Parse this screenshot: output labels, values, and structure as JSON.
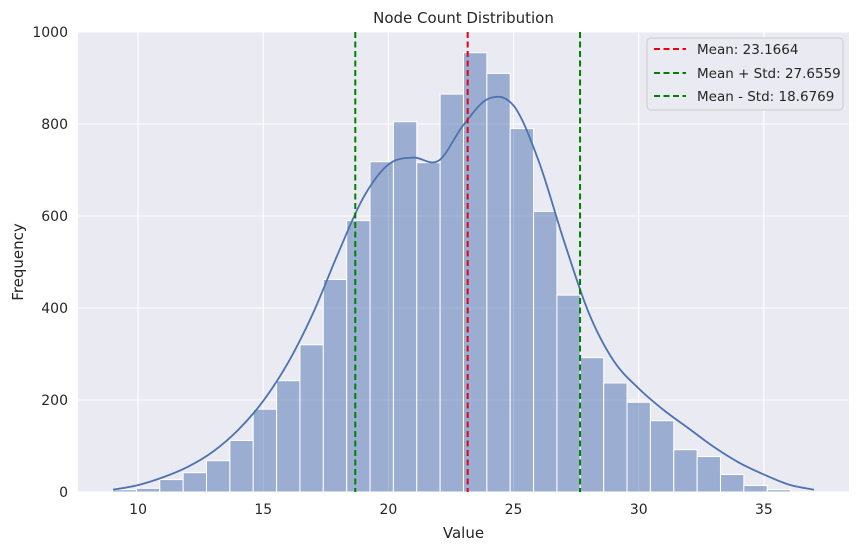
{
  "chart_data": {
    "type": "bar",
    "title": "Node Count Distribution",
    "xlabel": "Value",
    "ylabel": "Frequency",
    "xlim": [
      7.6,
      38.4
    ],
    "ylim": [
      0,
      1000
    ],
    "xticks": [
      10,
      15,
      20,
      25,
      30,
      35
    ],
    "yticks": [
      0,
      200,
      400,
      600,
      800,
      1000
    ],
    "grid": true,
    "legend_position": "top-right",
    "bin_width": 0.9333,
    "bin_start": 9.0,
    "histogram": [
      5,
      8,
      27,
      42,
      68,
      112,
      180,
      242,
      320,
      462,
      590,
      718,
      805,
      716,
      865,
      955,
      910,
      790,
      610,
      428,
      292,
      237,
      195,
      155,
      92,
      77,
      38,
      14,
      5
    ],
    "kde": {
      "x": [
        9,
        10,
        11,
        12,
        13,
        14,
        15,
        16,
        17,
        18,
        19,
        20,
        21,
        22,
        23,
        24,
        25,
        26,
        27,
        28,
        29,
        30,
        31,
        32,
        33,
        34,
        35,
        36,
        37
      ],
      "y": [
        5,
        15,
        32,
        55,
        88,
        135,
        198,
        282,
        390,
        520,
        640,
        712,
        727,
        720,
        798,
        855,
        840,
        720,
        548,
        390,
        285,
        225,
        178,
        138,
        98,
        64,
        38,
        16,
        5
      ]
    },
    "reference_lines": [
      {
        "label": "Mean: 23.1664",
        "x": 23.1664,
        "color": "#e8000b"
      },
      {
        "label": "Mean + Std: 27.6559",
        "x": 27.6559,
        "color": "#008000"
      },
      {
        "label": "Mean - Std: 18.6769",
        "x": 18.6769,
        "color": "#008000"
      }
    ],
    "colors": {
      "bars": "#4c72b0",
      "kde": "#4c72b0",
      "background": "#eaeaf2",
      "grid": "#ffffff"
    }
  }
}
